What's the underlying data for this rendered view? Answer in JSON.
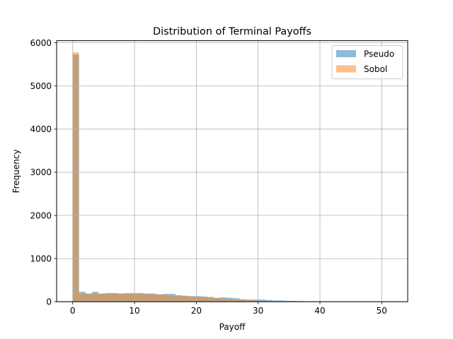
{
  "chart_data": {
    "type": "bar",
    "title": "Distribution of Terminal Payoffs",
    "xlabel": "Payoff",
    "ylabel": "Frequency",
    "xlim": [
      -2.6,
      54.2
    ],
    "ylim": [
      0,
      6050
    ],
    "xticks": [
      0,
      10,
      20,
      30,
      40,
      50
    ],
    "yticks": [
      0,
      1000,
      2000,
      3000,
      4000,
      5000,
      6000
    ],
    "grid": true,
    "legend_position": "top-right",
    "series": [
      {
        "name": "Pseudo",
        "color": "#1f77b4",
        "alpha": 0.5,
        "bin_start": 0,
        "bin_width": 1.04,
        "values": [
          5730,
          230,
          190,
          230,
          190,
          200,
          200,
          190,
          200,
          200,
          200,
          190,
          190,
          170,
          180,
          180,
          150,
          140,
          130,
          130,
          120,
          110,
          90,
          100,
          90,
          80,
          60,
          50,
          50,
          50,
          40,
          30,
          30,
          20,
          20,
          15,
          10,
          10,
          8,
          6,
          5,
          4,
          3,
          3,
          2,
          2,
          1,
          1,
          1,
          1
        ]
      },
      {
        "name": "Sobol",
        "color": "#ff7f0e",
        "alpha": 0.5,
        "bin_start": 0,
        "bin_width": 0.95,
        "values": [
          5780,
          180,
          180,
          190,
          180,
          180,
          190,
          190,
          190,
          180,
          180,
          190,
          180,
          170,
          170,
          160,
          150,
          140,
          130,
          130,
          120,
          110,
          100,
          90,
          80,
          70,
          60,
          50,
          40,
          40,
          30,
          25,
          20,
          15,
          12,
          10,
          8,
          6,
          4,
          3,
          2,
          1
        ]
      }
    ]
  }
}
